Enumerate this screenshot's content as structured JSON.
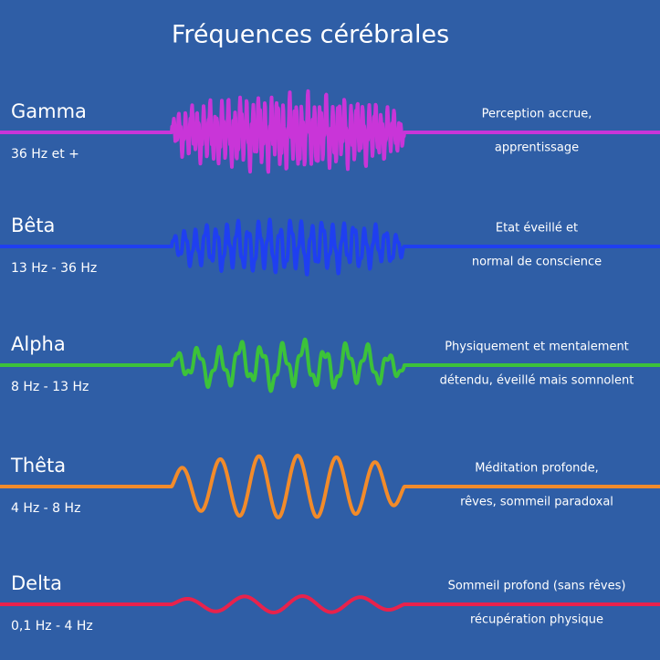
{
  "title": "Fréquences cérébrales",
  "bands": [
    {
      "name": "Gamma",
      "range": "36 Hz et +",
      "description": [
        "Perception accrue,",
        "apprentissage"
      ]
    },
    {
      "name": "Bêta",
      "range": "13 Hz - 36 Hz",
      "description": [
        "Etat éveillé et",
        "normal de conscience"
      ]
    },
    {
      "name": "Alpha",
      "range": "8 Hz - 13 Hz",
      "description": [
        "Physiquement et mentalement",
        "détendu, éveillé mais somnolent"
      ]
    },
    {
      "name": "Thêta",
      "range": "4 Hz - 8 Hz",
      "description": [
        "Méditation profonde,",
        "rêves, sommeil paradoxal"
      ]
    },
    {
      "name": "Delta",
      "range": "0,1 Hz - 4 Hz",
      "description": [
        "Sommeil profond (sans rêves)",
        "récupération physique"
      ]
    }
  ]
}
